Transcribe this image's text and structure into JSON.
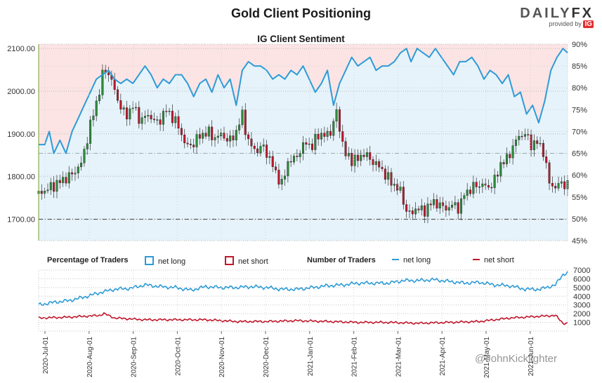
{
  "header": {
    "title": "Gold Client Positioning",
    "subtitle": "IG Client Sentiment",
    "brand_left": "DAILY",
    "brand_right": "FX",
    "provided_by": "provided by",
    "ig": "IG"
  },
  "watermark": "@JohnKicklighter",
  "colors": {
    "net_long": "#2e9bd6",
    "net_short": "#c0172b",
    "bull_candle": "#2e8b3a",
    "bear_candle": "#c0172b",
    "long_fill": "#e6f3fb",
    "short_fill": "#fce4e4"
  },
  "legend": {
    "pct_title": "Percentage of Traders",
    "pct_long": "net long",
    "pct_short": "net short",
    "num_title": "Number of Traders",
    "num_long": "net long",
    "num_short": "net short"
  },
  "chart_data": [
    {
      "type": "candlestick",
      "name": "Gold price",
      "y_ticks": [
        "2100.00",
        "2000.00",
        "1900.00",
        "1800.00",
        "1700.00"
      ],
      "ylim": [
        1650,
        2110
      ],
      "reference_line": 1700,
      "x_ticks": [
        "2020-Jul-01",
        "2020-Aug-01",
        "2020-Sep-01",
        "2020-Oct-01",
        "2020-Nov-01",
        "2020-Dec-01",
        "2021-Jan-01",
        "2021-Feb-01",
        "2021-Mar-01",
        "2021-Apr-01",
        "2021-May-01",
        "2021-Jun-01"
      ],
      "close_points": [
        [
          0,
          1760
        ],
        [
          8,
          1775
        ],
        [
          15,
          1790
        ],
        [
          22,
          1805
        ],
        [
          28,
          1830
        ],
        [
          35,
          1935
        ],
        [
          40,
          2000
        ],
        [
          43,
          2055
        ],
        [
          47,
          2035
        ],
        [
          52,
          1980
        ],
        [
          57,
          1940
        ],
        [
          62,
          1965
        ],
        [
          67,
          1930
        ],
        [
          72,
          1945
        ],
        [
          78,
          1925
        ],
        [
          84,
          1955
        ],
        [
          89,
          1935
        ],
        [
          93,
          1910
        ],
        [
          97,
          1870
        ],
        [
          101,
          1875
        ],
        [
          106,
          1895
        ],
        [
          111,
          1905
        ],
        [
          116,
          1890
        ],
        [
          121,
          1900
        ],
        [
          125,
          1880
        ],
        [
          130,
          1905
        ],
        [
          134,
          1945
        ],
        [
          138,
          1880
        ],
        [
          143,
          1860
        ],
        [
          148,
          1870
        ],
        [
          152,
          1840
        ],
        [
          156,
          1810
        ],
        [
          160,
          1780
        ],
        [
          164,
          1835
        ],
        [
          168,
          1840
        ],
        [
          172,
          1860
        ],
        [
          176,
          1880
        ],
        [
          180,
          1870
        ],
        [
          184,
          1900
        ],
        [
          188,
          1895
        ],
        [
          192,
          1905
        ],
        [
          196,
          1950
        ],
        [
          199,
          1895
        ],
        [
          202,
          1850
        ],
        [
          206,
          1840
        ],
        [
          210,
          1840
        ],
        [
          214,
          1855
        ],
        [
          218,
          1840
        ],
        [
          222,
          1830
        ],
        [
          226,
          1815
        ],
        [
          230,
          1795
        ],
        [
          234,
          1780
        ],
        [
          238,
          1765
        ],
        [
          242,
          1720
        ],
        [
          245,
          1710
        ],
        [
          249,
          1730
        ],
        [
          253,
          1715
        ],
        [
          257,
          1735
        ],
        [
          261,
          1740
        ],
        [
          265,
          1730
        ],
        [
          269,
          1725
        ],
        [
          273,
          1735
        ],
        [
          277,
          1725
        ],
        [
          280,
          1760
        ],
        [
          284,
          1770
        ],
        [
          288,
          1780
        ],
        [
          292,
          1780
        ],
        [
          296,
          1775
        ],
        [
          300,
          1790
        ],
        [
          304,
          1830
        ],
        [
          308,
          1840
        ],
        [
          312,
          1870
        ],
        [
          316,
          1895
        ],
        [
          320,
          1900
        ],
        [
          324,
          1875
        ],
        [
          328,
          1880
        ],
        [
          332,
          1860
        ],
        [
          336,
          1785
        ],
        [
          340,
          1775
        ],
        [
          344,
          1785
        ],
        [
          348,
          1780
        ]
      ]
    },
    {
      "type": "line",
      "name": "net long",
      "y_ticks": [
        "90%",
        "85%",
        "80%",
        "75%",
        "70%",
        "65%",
        "60%",
        "55%",
        "50%",
        "45%"
      ],
      "ylim": [
        45,
        90
      ],
      "reference_lines": [
        50,
        65
      ],
      "points": [
        [
          0,
          67
        ],
        [
          4,
          67
        ],
        [
          7,
          70
        ],
        [
          10,
          65
        ],
        [
          14,
          68
        ],
        [
          18,
          65
        ],
        [
          22,
          70
        ],
        [
          26,
          73
        ],
        [
          30,
          76
        ],
        [
          34,
          79
        ],
        [
          38,
          82
        ],
        [
          42,
          83
        ],
        [
          46,
          84
        ],
        [
          50,
          82
        ],
        [
          54,
          81
        ],
        [
          58,
          82
        ],
        [
          62,
          81
        ],
        [
          66,
          83
        ],
        [
          70,
          85
        ],
        [
          74,
          83
        ],
        [
          78,
          80
        ],
        [
          82,
          82
        ],
        [
          86,
          81
        ],
        [
          90,
          83
        ],
        [
          94,
          83
        ],
        [
          98,
          81
        ],
        [
          102,
          78
        ],
        [
          106,
          81
        ],
        [
          110,
          82
        ],
        [
          114,
          79
        ],
        [
          118,
          83
        ],
        [
          122,
          80
        ],
        [
          126,
          82
        ],
        [
          130,
          76
        ],
        [
          134,
          84
        ],
        [
          138,
          86
        ],
        [
          142,
          85
        ],
        [
          146,
          85
        ],
        [
          150,
          84
        ],
        [
          154,
          82
        ],
        [
          158,
          83
        ],
        [
          162,
          82
        ],
        [
          166,
          84
        ],
        [
          170,
          83
        ],
        [
          174,
          85
        ],
        [
          178,
          82
        ],
        [
          182,
          79
        ],
        [
          186,
          81
        ],
        [
          190,
          84
        ],
        [
          194,
          76
        ],
        [
          198,
          81
        ],
        [
          202,
          84
        ],
        [
          206,
          87
        ],
        [
          210,
          85
        ],
        [
          214,
          86
        ],
        [
          218,
          87
        ],
        [
          222,
          84
        ],
        [
          226,
          85
        ],
        [
          230,
          85
        ],
        [
          234,
          86
        ],
        [
          238,
          88
        ],
        [
          242,
          89
        ],
        [
          245,
          86
        ],
        [
          249,
          89
        ],
        [
          253,
          88
        ],
        [
          257,
          87
        ],
        [
          261,
          89
        ],
        [
          265,
          87
        ],
        [
          269,
          85
        ],
        [
          273,
          83
        ],
        [
          277,
          86
        ],
        [
          281,
          86
        ],
        [
          285,
          87
        ],
        [
          289,
          85
        ],
        [
          293,
          82
        ],
        [
          297,
          84
        ],
        [
          301,
          83
        ],
        [
          305,
          81
        ],
        [
          309,
          83
        ],
        [
          313,
          78
        ],
        [
          317,
          79
        ],
        [
          321,
          74
        ],
        [
          325,
          76
        ],
        [
          329,
          72
        ],
        [
          333,
          77
        ],
        [
          337,
          84
        ],
        [
          341,
          87
        ],
        [
          345,
          89
        ],
        [
          348,
          88
        ]
      ]
    },
    {
      "type": "line",
      "name": "Number of Traders",
      "y_ticks": [
        "7000",
        "6000",
        "5000",
        "4000",
        "3000",
        "2000",
        "1000"
      ],
      "ylim": [
        0,
        7000
      ],
      "series": [
        {
          "name": "net long",
          "points": [
            [
              0,
              3000
            ],
            [
              10,
              3300
            ],
            [
              20,
              3500
            ],
            [
              30,
              3900
            ],
            [
              40,
              4400
            ],
            [
              50,
              4800
            ],
            [
              60,
              4900
            ],
            [
              70,
              5300
            ],
            [
              80,
              5100
            ],
            [
              90,
              5000
            ],
            [
              100,
              4700
            ],
            [
              110,
              5100
            ],
            [
              120,
              5000
            ],
            [
              130,
              5000
            ],
            [
              140,
              5100
            ],
            [
              150,
              5000
            ],
            [
              160,
              4800
            ],
            [
              170,
              4800
            ],
            [
              180,
              5000
            ],
            [
              190,
              5200
            ],
            [
              200,
              5300
            ],
            [
              210,
              5500
            ],
            [
              220,
              5500
            ],
            [
              230,
              5500
            ],
            [
              240,
              5800
            ],
            [
              250,
              5800
            ],
            [
              260,
              5900
            ],
            [
              270,
              5700
            ],
            [
              280,
              5500
            ],
            [
              290,
              5600
            ],
            [
              300,
              5300
            ],
            [
              310,
              5200
            ],
            [
              320,
              4800
            ],
            [
              330,
              4800
            ],
            [
              340,
              5300
            ],
            [
              345,
              6500
            ],
            [
              348,
              6700
            ]
          ]
        },
        {
          "name": "net short",
          "points": [
            [
              0,
              1500
            ],
            [
              20,
              1600
            ],
            [
              40,
              1800
            ],
            [
              43,
              2000
            ],
            [
              50,
              1500
            ],
            [
              70,
              1300
            ],
            [
              90,
              1300
            ],
            [
              110,
              1300
            ],
            [
              130,
              1100
            ],
            [
              150,
              1100
            ],
            [
              170,
              1200
            ],
            [
              190,
              1100
            ],
            [
              210,
              1000
            ],
            [
              230,
              1000
            ],
            [
              250,
              900
            ],
            [
              270,
              1000
            ],
            [
              290,
              1100
            ],
            [
              310,
              1500
            ],
            [
              330,
              1700
            ],
            [
              340,
              1800
            ],
            [
              345,
              900
            ],
            [
              348,
              900
            ]
          ]
        }
      ]
    }
  ]
}
